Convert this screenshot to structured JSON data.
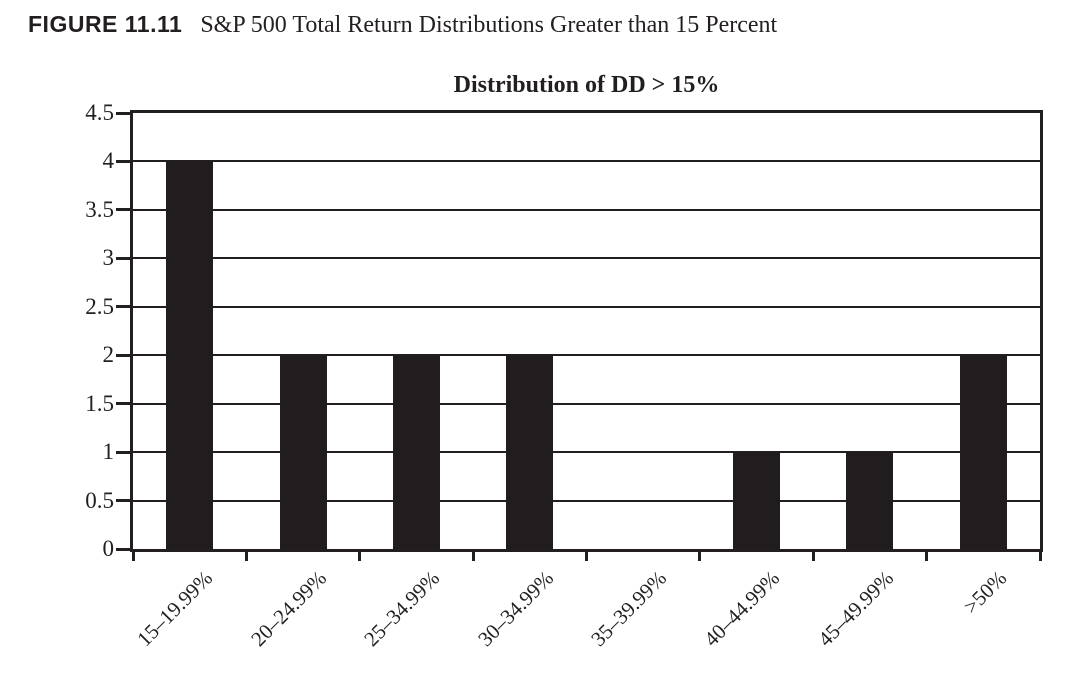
{
  "figure": {
    "label": "FIGURE 11.11",
    "caption": "S&P 500 Total Return Distributions Greater than 15 Percent"
  },
  "chart_data": {
    "type": "bar",
    "title": "Distribution of DD > 15%",
    "categories": [
      "15–19.99%",
      "20–24.99%",
      "25–34.99%",
      "30–34.99%",
      "35–39.99%",
      "40–44.99%",
      "45–49.99%",
      ">50%"
    ],
    "values": [
      4,
      2,
      2,
      2,
      0,
      1,
      1,
      2
    ],
    "xlabel": "",
    "ylabel": "",
    "ylim": [
      0,
      4.5
    ],
    "yticks": [
      0,
      0.5,
      1,
      1.5,
      2,
      2.5,
      3,
      3.5,
      4,
      4.5
    ],
    "grid": "horizontal",
    "legend": "none",
    "bar_color": "#211d1e",
    "axis_color": "#231f20",
    "text_color": "#231f20"
  }
}
